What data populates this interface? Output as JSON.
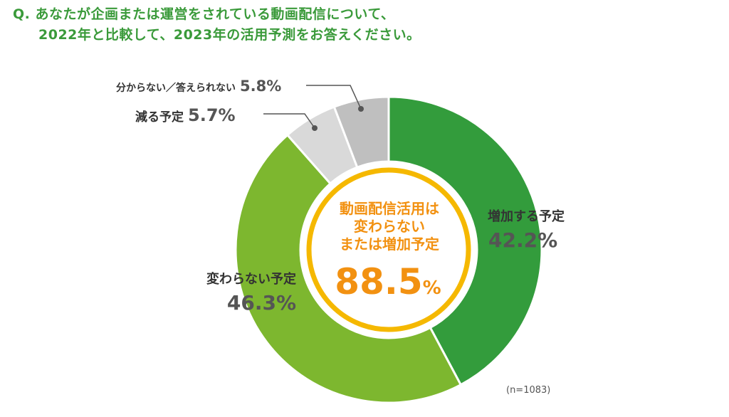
{
  "question": {
    "line1": "Q. あなたが企画または運営をされている動画配信について、",
    "line2": "2022年と比較して、2023年の活用予測をお答えください。"
  },
  "chart_data": {
    "type": "pie",
    "categories": [
      "増加する予定",
      "変わらない予定",
      "減る予定",
      "分からない／答えられない"
    ],
    "values": [
      42.2,
      46.3,
      5.7,
      5.8
    ],
    "value_labels": [
      "42.2%",
      "46.3%",
      "5.7%",
      "5.8%"
    ],
    "colors": [
      "#339c3c",
      "#7db72f",
      "#d9d9d9",
      "#bfbfbf"
    ],
    "center": {
      "lines": [
        "動画配信活用は",
        "変わらない",
        "または増加予定"
      ],
      "value": "88.5",
      "unit": "%",
      "color": "#f29111",
      "ring_color": "#f5b800"
    },
    "sample_note": "(n=1083)"
  }
}
